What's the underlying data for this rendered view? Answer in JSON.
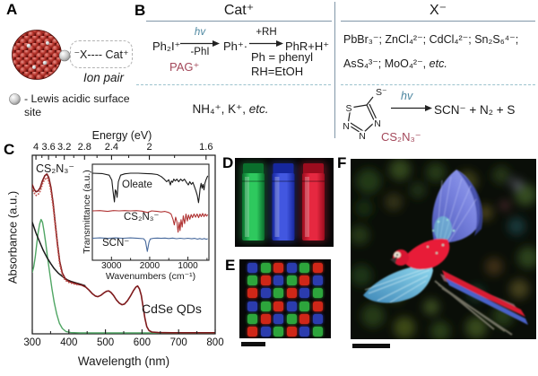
{
  "panel_a": {
    "label": "A",
    "ion_pair_text": "⁻X---- Cat⁺",
    "ion_pair_caption": "Ion pair",
    "legend_text": "- Lewis acidic surface site"
  },
  "panel_b": {
    "label": "B",
    "cation_header": "Cat⁺",
    "anion_header": "X⁻",
    "reaction": {
      "reactant": "Ph₂I⁺",
      "arrow1_top": "hv",
      "arrow1_bottom": "-PhI",
      "intermediate": "Ph⁺·",
      "arrow2_top": "+RH",
      "product": "PhR+H⁺"
    },
    "pag_label": "PAG⁺",
    "note_line1": "Ph = phenyl",
    "note_line2": "RH=EtOH",
    "cation_examples": "NH₄⁺, K⁺, ",
    "etc1": "etc.",
    "anion_row1": "PbBr₃⁻;  ZnCl₄²⁻;  CdCl₄²⁻; Sn₂S₆⁴⁻;",
    "anion_row2": "AsS₄³⁻;  MoO₄²⁻,  ",
    "etc2": "etc.",
    "thiolate": {
      "substituent": "S⁻",
      "atom_s": "S",
      "atom_n1": "N",
      "atom_n2": "N",
      "atom_n3": "N",
      "arrow_top": "hv",
      "products": "SCN⁻ + N₂ + S",
      "name": "CS₂N₃⁻"
    }
  },
  "panel_c": {
    "label": "C"
  },
  "chart_data": {
    "main": {
      "type": "line",
      "top_axis_title": "Energy (eV)",
      "top_ticks": [
        4,
        3.6,
        3.2,
        2.8,
        2.4,
        2,
        1.6
      ],
      "top_minor": [
        3.8,
        3.4,
        3,
        2.6,
        2.2,
        1.8
      ],
      "xlabel": "Wavelength (nm)",
      "ylabel": "Absorbance (a.u.)",
      "xlim": [
        300,
        800
      ],
      "xticks": [
        300,
        400,
        500,
        600,
        700,
        800
      ],
      "xminor": [
        350,
        450,
        550,
        650,
        750
      ],
      "annotations": [
        {
          "text": "CS₂N₃⁻"
        },
        {
          "text": "CdSe QDs"
        }
      ],
      "series": [
        {
          "name": "green",
          "color": "#50a664",
          "width": 1.4,
          "points": [
            [
              300,
              0.345
            ],
            [
              304,
              0.375
            ],
            [
              308,
              0.43
            ],
            [
              312,
              0.5
            ],
            [
              316,
              0.565
            ],
            [
              320,
              0.615
            ],
            [
              324,
              0.64
            ],
            [
              328,
              0.625
            ],
            [
              332,
              0.575
            ],
            [
              337,
              0.505
            ],
            [
              342,
              0.425
            ],
            [
              348,
              0.335
            ],
            [
              354,
              0.25
            ],
            [
              360,
              0.175
            ],
            [
              367,
              0.11
            ],
            [
              374,
              0.06
            ],
            [
              382,
              0.03
            ],
            [
              392,
              0.013
            ],
            [
              405,
              0.007
            ],
            [
              430,
              0.005
            ],
            [
              470,
              0.005
            ],
            [
              520,
              0.005
            ],
            [
              600,
              0.005
            ],
            [
              700,
              0.005
            ],
            [
              800,
              0.005
            ]
          ]
        },
        {
          "name": "black",
          "color": "#1a1a1a",
          "width": 1.5,
          "points": [
            [
              300,
              0.625
            ],
            [
              310,
              0.565
            ],
            [
              320,
              0.515
            ],
            [
              330,
              0.468
            ],
            [
              340,
              0.428
            ],
            [
              350,
              0.395
            ],
            [
              360,
              0.365
            ],
            [
              372,
              0.338
            ],
            [
              384,
              0.318
            ],
            [
              396,
              0.302
            ],
            [
              408,
              0.292
            ],
            [
              420,
              0.285
            ],
            [
              432,
              0.278
            ],
            [
              444,
              0.27
            ]
          ]
        },
        {
          "name": "CdSe QDs",
          "color": "#7e1a1c",
          "width": 1.6,
          "points": [
            [
              300,
              0.835
            ],
            [
              305,
              0.81
            ],
            [
              310,
              0.795
            ],
            [
              316,
              0.8
            ],
            [
              322,
              0.82
            ],
            [
              328,
              0.858
            ],
            [
              334,
              0.885
            ],
            [
              340,
              0.895
            ],
            [
              345,
              0.875
            ],
            [
              351,
              0.82
            ],
            [
              357,
              0.73
            ],
            [
              363,
              0.615
            ],
            [
              369,
              0.5
            ],
            [
              375,
              0.405
            ],
            [
              382,
              0.34
            ],
            [
              391,
              0.306
            ],
            [
              400,
              0.293
            ],
            [
              412,
              0.285
            ],
            [
              424,
              0.278
            ],
            [
              436,
              0.272
            ],
            [
              446,
              0.262
            ],
            [
              455,
              0.245
            ],
            [
              464,
              0.225
            ],
            [
              472,
              0.212
            ],
            [
              479,
              0.208
            ],
            [
              487,
              0.215
            ],
            [
              495,
              0.228
            ],
            [
              503,
              0.238
            ],
            [
              509,
              0.24
            ],
            [
              515,
              0.232
            ],
            [
              522,
              0.215
            ],
            [
              530,
              0.19
            ],
            [
              538,
              0.172
            ],
            [
              545,
              0.163
            ],
            [
              552,
              0.167
            ],
            [
              560,
              0.185
            ],
            [
              568,
              0.21
            ],
            [
              576,
              0.24
            ],
            [
              583,
              0.262
            ],
            [
              588,
              0.268
            ],
            [
              593,
              0.252
            ],
            [
              598,
              0.215
            ],
            [
              603,
              0.15
            ],
            [
              608,
              0.085
            ],
            [
              613,
              0.04
            ],
            [
              619,
              0.018
            ],
            [
              627,
              0.01
            ],
            [
              645,
              0.007
            ],
            [
              680,
              0.006
            ],
            [
              720,
              0.006
            ],
            [
              760,
              0.006
            ],
            [
              800,
              0.006
            ]
          ]
        },
        {
          "name": "CS₂N₃⁻ (dotted)",
          "color": "#c0504a",
          "width": 1.8,
          "dash": "0.1 3",
          "points": [
            [
              300,
              0.815
            ],
            [
              305,
              0.79
            ],
            [
              310,
              0.775
            ],
            [
              316,
              0.78
            ],
            [
              322,
              0.8
            ],
            [
              328,
              0.84
            ],
            [
              334,
              0.865
            ],
            [
              340,
              0.875
            ],
            [
              345,
              0.855
            ],
            [
              351,
              0.8
            ],
            [
              357,
              0.71
            ],
            [
              363,
              0.6
            ],
            [
              369,
              0.485
            ],
            [
              375,
              0.39
            ],
            [
              382,
              0.33
            ],
            [
              390,
              0.3
            ],
            [
              400,
              0.288
            ],
            [
              412,
              0.28
            ],
            [
              424,
              0.275
            ]
          ]
        }
      ]
    },
    "inset": {
      "type": "line",
      "xlabel": "Wavenumbers (cm⁻¹)",
      "ylabel": "Transmittance (a.u.)",
      "xlim": [
        3500,
        450
      ],
      "xticks": [
        3000,
        2000,
        1000
      ],
      "series": [
        {
          "name": "Oleate",
          "color": "#1a1a1a",
          "y0": 0.08,
          "amp": 0.34,
          "points": [
            [
              3500,
              0.96
            ],
            [
              3250,
              0.95
            ],
            [
              3060,
              0.9
            ],
            [
              2990,
              0.75
            ],
            [
              2958,
              0.4
            ],
            [
              2922,
              0.08
            ],
            [
              2900,
              0.45
            ],
            [
              2875,
              0.4
            ],
            [
              2852,
              0.22
            ],
            [
              2820,
              0.7
            ],
            [
              2760,
              0.9
            ],
            [
              2650,
              0.94
            ],
            [
              2500,
              0.96
            ],
            [
              2300,
              0.96
            ],
            [
              2100,
              0.95
            ],
            [
              1950,
              0.94
            ],
            [
              1800,
              0.92
            ],
            [
              1700,
              0.86
            ],
            [
              1620,
              0.78
            ],
            [
              1555,
              0.7
            ],
            [
              1500,
              0.76
            ],
            [
              1460,
              0.6
            ],
            [
              1430,
              0.72
            ],
            [
              1400,
              0.68
            ],
            [
              1370,
              0.78
            ],
            [
              1330,
              0.72
            ],
            [
              1290,
              0.78
            ],
            [
              1240,
              0.7
            ],
            [
              1190,
              0.78
            ],
            [
              1140,
              0.72
            ],
            [
              1090,
              0.78
            ],
            [
              1040,
              0.68
            ],
            [
              990,
              0.6
            ],
            [
              950,
              0.7
            ],
            [
              910,
              0.62
            ],
            [
              870,
              0.68
            ],
            [
              830,
              0.55
            ],
            [
              790,
              0.42
            ],
            [
              755,
              0.28
            ],
            [
              722,
              0.06
            ],
            [
              700,
              0.25
            ],
            [
              680,
              0.5
            ],
            [
              655,
              0.65
            ],
            [
              630,
              0.5
            ],
            [
              605,
              0.62
            ],
            [
              580,
              0.45
            ],
            [
              555,
              0.65
            ],
            [
              530,
              0.75
            ],
            [
              505,
              0.82
            ],
            [
              480,
              0.88
            ]
          ]
        },
        {
          "name": "CS₂N₃⁻",
          "color": "#b03434",
          "y0": 0.47,
          "amp": 0.27,
          "points": [
            [
              3500,
              0.94
            ],
            [
              3300,
              0.95
            ],
            [
              3100,
              0.92
            ],
            [
              2950,
              0.95
            ],
            [
              2800,
              0.94
            ],
            [
              2650,
              0.95
            ],
            [
              2500,
              0.94
            ],
            [
              2350,
              0.95
            ],
            [
              2200,
              0.93
            ],
            [
              2060,
              0.88
            ],
            [
              1950,
              0.94
            ],
            [
              1800,
              0.92
            ],
            [
              1700,
              0.9
            ],
            [
              1600,
              0.92
            ],
            [
              1500,
              0.88
            ],
            [
              1440,
              0.82
            ],
            [
              1390,
              0.62
            ],
            [
              1355,
              0.4
            ],
            [
              1320,
              0.7
            ],
            [
              1285,
              0.5
            ],
            [
              1258,
              0.12
            ],
            [
              1230,
              0.5
            ],
            [
              1205,
              0.18
            ],
            [
              1180,
              0.6
            ],
            [
              1150,
              0.32
            ],
            [
              1120,
              0.75
            ],
            [
              1085,
              0.45
            ],
            [
              1050,
              0.82
            ],
            [
              1015,
              0.55
            ],
            [
              985,
              0.78
            ],
            [
              950,
              0.62
            ],
            [
              915,
              0.8
            ],
            [
              880,
              0.68
            ],
            [
              840,
              0.82
            ],
            [
              800,
              0.7
            ],
            [
              760,
              0.82
            ],
            [
              720,
              0.68
            ],
            [
              685,
              0.82
            ],
            [
              650,
              0.72
            ],
            [
              615,
              0.84
            ],
            [
              580,
              0.72
            ],
            [
              545,
              0.82
            ],
            [
              510,
              0.74
            ],
            [
              480,
              0.8
            ]
          ]
        },
        {
          "name": "SCN⁻",
          "color": "#47699c",
          "y0": 0.76,
          "amp": 0.155,
          "points": [
            [
              3500,
              0.93
            ],
            [
              3300,
              0.95
            ],
            [
              3100,
              0.92
            ],
            [
              2900,
              0.95
            ],
            [
              2700,
              0.93
            ],
            [
              2500,
              0.95
            ],
            [
              2300,
              0.92
            ],
            [
              2160,
              0.9
            ],
            [
              2110,
              0.75
            ],
            [
              2062,
              0.04
            ],
            [
              2020,
              0.65
            ],
            [
              1985,
              0.88
            ],
            [
              1900,
              0.93
            ],
            [
              1800,
              0.94
            ],
            [
              1700,
              0.92
            ],
            [
              1600,
              0.94
            ],
            [
              1500,
              0.91
            ],
            [
              1400,
              0.94
            ],
            [
              1300,
              0.9
            ],
            [
              1200,
              0.93
            ],
            [
              1100,
              0.9
            ],
            [
              1000,
              0.93
            ],
            [
              900,
              0.89
            ],
            [
              820,
              0.92
            ],
            [
              750,
              0.87
            ],
            [
              690,
              0.91
            ],
            [
              630,
              0.87
            ],
            [
              570,
              0.91
            ],
            [
              520,
              0.86
            ],
            [
              480,
              0.9
            ]
          ]
        }
      ]
    }
  },
  "panel_d": {
    "label": "D",
    "cuvettes": [
      {
        "name": "green",
        "dark": "#0a6e2c",
        "bright": "#2ec95e"
      },
      {
        "name": "blue",
        "dark": "#16279e",
        "bright": "#4257e0"
      },
      {
        "name": "red",
        "dark": "#9c0c1e",
        "bright": "#e62840"
      }
    ]
  },
  "panel_e": {
    "label": "E",
    "palette": {
      "R": "#cf2718",
      "G": "#2da53c",
      "B": "#2b3cae"
    },
    "grid": [
      [
        "B",
        "G",
        "R",
        "B",
        "G",
        "R"
      ],
      [
        "G",
        "R",
        "B",
        "G",
        "R",
        "B"
      ],
      [
        "R",
        "B",
        "G",
        "R",
        "B",
        "G"
      ],
      [
        "B",
        "G",
        "R",
        "B",
        "G",
        "R"
      ],
      [
        "G",
        "R",
        "B",
        "G",
        "R",
        "B"
      ],
      [
        "R",
        "B",
        "G",
        "R",
        "B",
        "G"
      ]
    ]
  },
  "panel_f": {
    "label": "F"
  }
}
